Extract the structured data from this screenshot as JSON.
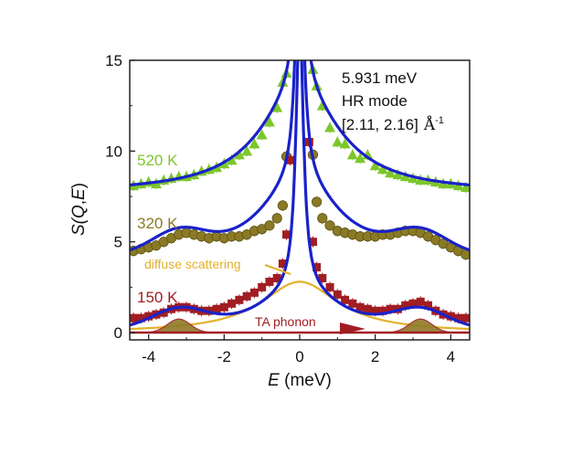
{
  "chart_data": {
    "type": "scatter",
    "xlabel_italic": "E",
    "xlabel_unit": " (meV)",
    "ylabel_parts": [
      "S(",
      "Q",
      ",",
      "E",
      ")"
    ],
    "xlim": [
      -4.5,
      4.5
    ],
    "ylim": [
      -0.4,
      15
    ],
    "x_ticks": [
      -4,
      -2,
      0,
      2,
      4
    ],
    "x_tick_labels": [
      "-4",
      "-2",
      "0",
      "2",
      "4"
    ],
    "y_ticks": [
      0,
      5,
      10,
      15
    ],
    "y_tick_labels": [
      "0",
      "5",
      "10",
      "15"
    ],
    "annotation": {
      "line1": "5.931 meV",
      "line2": "HR mode",
      "line3": "[2.11, 2.16]",
      "line3_unit": "Å",
      "line3_exp": "-1"
    },
    "series": [
      {
        "name": "520 K",
        "color": "#7cc72a",
        "marker": "triangle",
        "points": [
          [
            -4.4,
            8.1
          ],
          [
            -4.2,
            8.2
          ],
          [
            -4.0,
            8.3
          ],
          [
            -3.8,
            8.2
          ],
          [
            -3.6,
            8.4
          ],
          [
            -3.4,
            8.5
          ],
          [
            -3.2,
            8.6
          ],
          [
            -3.0,
            8.6
          ],
          [
            -2.8,
            8.7
          ],
          [
            -2.6,
            8.9
          ],
          [
            -2.4,
            9.0
          ],
          [
            -2.2,
            9.1
          ],
          [
            -2.0,
            9.3
          ],
          [
            -1.8,
            9.5
          ],
          [
            -1.6,
            9.8
          ],
          [
            -1.4,
            10.0
          ],
          [
            -1.2,
            10.4
          ],
          [
            -1.0,
            10.9
          ],
          [
            -0.8,
            11.6
          ],
          [
            -0.6,
            12.4
          ],
          [
            -0.45,
            13.8
          ],
          [
            -0.35,
            14.3
          ],
          [
            0.35,
            14.5
          ],
          [
            0.45,
            13.6
          ],
          [
            0.6,
            12.5
          ],
          [
            0.8,
            11.3
          ],
          [
            1.0,
            10.5
          ],
          [
            1.2,
            10.4
          ],
          [
            1.4,
            9.8
          ],
          [
            1.6,
            9.6
          ],
          [
            1.8,
            9.8
          ],
          [
            2.0,
            9.2
          ],
          [
            2.2,
            9.0
          ],
          [
            2.4,
            8.8
          ],
          [
            2.6,
            8.7
          ],
          [
            2.8,
            8.6
          ],
          [
            3.0,
            8.5
          ],
          [
            3.2,
            8.4
          ],
          [
            3.4,
            8.4
          ],
          [
            3.6,
            8.3
          ],
          [
            3.8,
            8.2
          ],
          [
            4.0,
            8.2
          ],
          [
            4.2,
            8.1
          ],
          [
            4.4,
            8.0
          ]
        ]
      },
      {
        "name": "320 K",
        "color": "#8a7a25",
        "marker": "circle",
        "points": [
          [
            -4.4,
            4.5
          ],
          [
            -4.2,
            4.6
          ],
          [
            -4.0,
            4.7
          ],
          [
            -3.8,
            4.8
          ],
          [
            -3.6,
            5.0
          ],
          [
            -3.4,
            5.2
          ],
          [
            -3.2,
            5.4
          ],
          [
            -3.0,
            5.5
          ],
          [
            -2.8,
            5.4
          ],
          [
            -2.6,
            5.3
          ],
          [
            -2.4,
            5.2
          ],
          [
            -2.2,
            5.3
          ],
          [
            -2.0,
            5.2
          ],
          [
            -1.8,
            5.3
          ],
          [
            -1.6,
            5.3
          ],
          [
            -1.4,
            5.4
          ],
          [
            -1.2,
            5.6
          ],
          [
            -1.0,
            5.7
          ],
          [
            -0.8,
            5.9
          ],
          [
            -0.6,
            6.3
          ],
          [
            -0.45,
            7.0
          ],
          [
            -0.35,
            9.7
          ],
          [
            0.35,
            9.8
          ],
          [
            0.45,
            7.2
          ],
          [
            0.6,
            6.3
          ],
          [
            0.8,
            5.9
          ],
          [
            1.0,
            5.6
          ],
          [
            1.2,
            5.5
          ],
          [
            1.4,
            5.4
          ],
          [
            1.6,
            5.3
          ],
          [
            1.8,
            5.3
          ],
          [
            2.0,
            5.3
          ],
          [
            2.2,
            5.4
          ],
          [
            2.4,
            5.4
          ],
          [
            2.6,
            5.5
          ],
          [
            2.8,
            5.6
          ],
          [
            3.0,
            5.6
          ],
          [
            3.2,
            5.5
          ],
          [
            3.4,
            5.3
          ],
          [
            3.6,
            5.1
          ],
          [
            3.8,
            4.9
          ],
          [
            4.0,
            4.7
          ],
          [
            4.2,
            4.5
          ],
          [
            4.4,
            4.3
          ]
        ]
      },
      {
        "name": "150 K",
        "color": "#a11d22",
        "marker": "square",
        "points": [
          [
            -4.4,
            0.8
          ],
          [
            -4.2,
            0.8
          ],
          [
            -4.0,
            0.9
          ],
          [
            -3.8,
            1.0
          ],
          [
            -3.6,
            1.1
          ],
          [
            -3.4,
            1.3
          ],
          [
            -3.2,
            1.4
          ],
          [
            -3.0,
            1.4
          ],
          [
            -2.8,
            1.3
          ],
          [
            -2.6,
            1.2
          ],
          [
            -2.4,
            1.2
          ],
          [
            -2.2,
            1.3
          ],
          [
            -2.0,
            1.4
          ],
          [
            -1.8,
            1.6
          ],
          [
            -1.6,
            1.8
          ],
          [
            -1.4,
            2.0
          ],
          [
            -1.2,
            2.2
          ],
          [
            -1.0,
            2.5
          ],
          [
            -0.8,
            2.8
          ],
          [
            -0.6,
            3.0
          ],
          [
            -0.45,
            3.8
          ],
          [
            -0.35,
            5.4
          ],
          [
            -0.25,
            9.5
          ],
          [
            0.25,
            10.5
          ],
          [
            0.35,
            5.0
          ],
          [
            0.45,
            3.6
          ],
          [
            0.6,
            3.0
          ],
          [
            0.8,
            2.5
          ],
          [
            1.0,
            2.1
          ],
          [
            1.2,
            1.8
          ],
          [
            1.4,
            1.6
          ],
          [
            1.6,
            1.4
          ],
          [
            1.8,
            1.3
          ],
          [
            2.0,
            1.2
          ],
          [
            2.2,
            1.2
          ],
          [
            2.4,
            1.3
          ],
          [
            2.6,
            1.3
          ],
          [
            2.8,
            1.5
          ],
          [
            3.0,
            1.6
          ],
          [
            3.2,
            1.7
          ],
          [
            3.4,
            1.5
          ],
          [
            3.6,
            1.2
          ],
          [
            3.8,
            1.0
          ],
          [
            4.0,
            0.9
          ],
          [
            4.2,
            0.8
          ],
          [
            4.4,
            0.8
          ]
        ]
      }
    ],
    "fits": {
      "color": "#1a22c9",
      "amplitudes": [
        5.5,
        4.3,
        2.3
      ],
      "backgrounds": [
        7.7,
        4.0,
        0.05
      ],
      "phonon_peak": [
        0,
        1.15,
        1.0
      ],
      "elastic_amplitude": 15,
      "components": {
        "diffuse": {
          "label": "diffuse scattering",
          "color": "#e3b12b",
          "center": 0,
          "amplitude": 2.8,
          "width": 1.25
        },
        "phonon": {
          "label": "TA phonon",
          "color": "#a11d22",
          "center": 3.2,
          "amplitude": 0.75,
          "width": 0.3
        }
      }
    }
  }
}
